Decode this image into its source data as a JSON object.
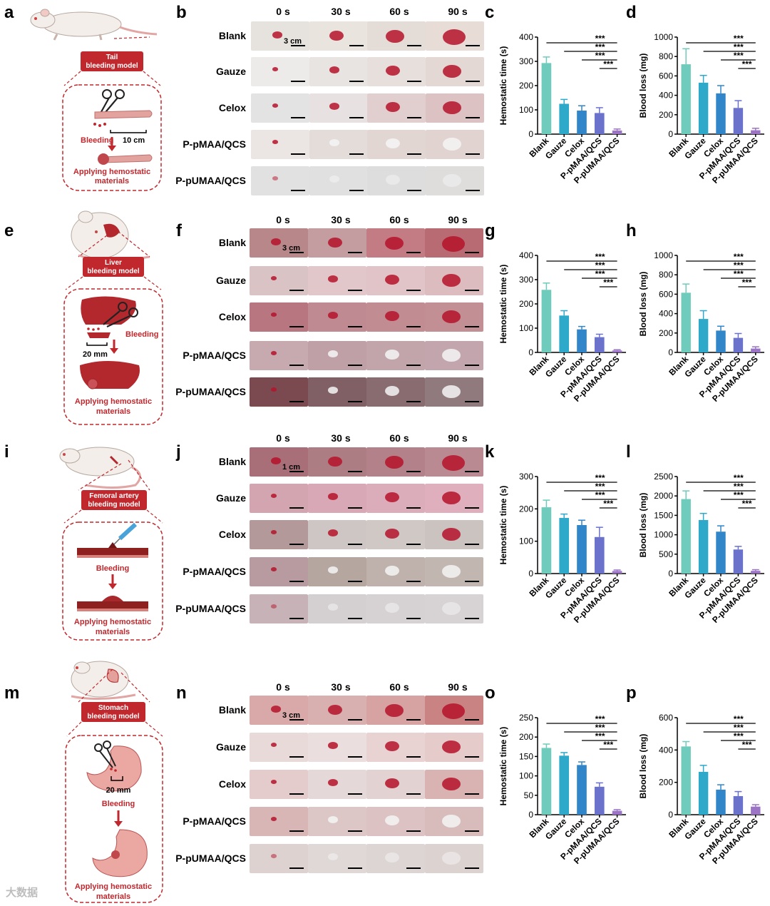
{
  "panel_letters": {
    "a": "a",
    "b": "b",
    "c": "c",
    "d": "d",
    "e": "e",
    "f": "f",
    "g": "g",
    "h": "h",
    "i": "i",
    "j": "j",
    "k": "k",
    "l": "l",
    "m": "m",
    "n": "n",
    "o": "o",
    "p": "p"
  },
  "time_labels": [
    "0 s",
    "30 s",
    "60 s",
    "90 s"
  ],
  "row_labels": [
    "Blank",
    "Gauze",
    "Celox",
    "P-pMAA/QCS",
    "P-pUMAA/QCS"
  ],
  "scale_labels": {
    "b": "3 cm",
    "f": "3 cm",
    "j": "1 cm",
    "n": "3 cm"
  },
  "models": {
    "a": {
      "title": "Tail\nbleeding model",
      "title1": "Tail",
      "title2": "bleeding model",
      "bleeding": "Bleeding",
      "measure": "10 cm",
      "apply1": "Applying hemostatic",
      "apply2": "materials"
    },
    "e": {
      "title1": "Liver",
      "title2": "bleeding model",
      "bleeding": "Bleeding",
      "measure": "20 mm",
      "apply1": "Applying hemostatic",
      "apply2": "materials"
    },
    "i": {
      "title1": "Femoral artery",
      "title2": "bleeding model",
      "bleeding": "Bleeding",
      "apply1": "Applying hemostatic",
      "apply2": "materials"
    },
    "m": {
      "title1": "Stomach",
      "title2": "bleeding model",
      "bleeding": "Bleeding",
      "measure": "20 mm",
      "apply1": "Applying hemostatic",
      "apply2": "materials"
    }
  },
  "photo_colors": {
    "b": [
      [
        "#e6e2dd",
        "#e9e4de",
        "#e4dcd6",
        "#e8dcd7"
      ],
      [
        "#ecebe9",
        "#e8e4e2",
        "#e7dfdc",
        "#e4d8d5"
      ],
      [
        "#e3e3e3",
        "#e7e2e1",
        "#e1cfcf",
        "#dcc2c2"
      ],
      [
        "#ebe6e4",
        "#e4dcd9",
        "#e2d6d3",
        "#e0d3d0"
      ],
      [
        "#e1e1e1",
        "#e0e0e0",
        "#dddddd",
        "#dfdcdc"
      ]
    ],
    "f": [
      [
        "#b8878a",
        "#c49da1",
        "#c47c84",
        "#b96b74"
      ],
      [
        "#d9c3c5",
        "#e2c7ca",
        "#e0c4c7",
        "#ddbcc0"
      ],
      [
        "#b77680",
        "#bf8a92",
        "#c28c93",
        "#c28f95"
      ],
      [
        "#c6aab0",
        "#c0a0a7",
        "#c2a5ab",
        "#c3a6ad"
      ],
      [
        "#7a4a50",
        "#806064",
        "#896c70",
        "#917a7e"
      ]
    ],
    "j": [
      [
        "#a86f78",
        "#ad7d84",
        "#b38189",
        "#ba8a92"
      ],
      [
        "#d3a5b0",
        "#d9a8b6",
        "#dbacba",
        "#e0afbd"
      ],
      [
        "#b4999a",
        "#cdc6c4",
        "#cfc8c5",
        "#cbc3c0"
      ],
      [
        "#b89ba0",
        "#b5a79f",
        "#bfb2ac",
        "#c2b6b0"
      ],
      [
        "#c7b2b7",
        "#d4d0d1",
        "#d6d2d3",
        "#d7d3d4"
      ]
    ],
    "n": [
      [
        "#d9a9a9",
        "#d8b0b0",
        "#d6a2a2",
        "#c98383"
      ],
      [
        "#e9dada",
        "#eadede",
        "#e8d2d2",
        "#e6cbcb"
      ],
      [
        "#e4cccc",
        "#e4d8d8",
        "#e3d2d2",
        "#d9b2b2"
      ],
      [
        "#d8b6b6",
        "#dcc6c6",
        "#dcc2c2",
        "#d8bcbc"
      ],
      [
        "#ddd2cf",
        "#dfd8d6",
        "#ddd5d3",
        "#dcd3d1"
      ]
    ]
  },
  "chart_data": [
    {
      "id": "c",
      "type": "bar",
      "ylabel": "Hemostatic time (s)",
      "categories": [
        "Blank",
        "Gauze",
        "Celox",
        "P-pMAA/QCS",
        "P-pUMAA/QCS"
      ],
      "values": [
        293,
        125,
        97,
        87,
        15
      ],
      "errors": [
        25,
        18,
        20,
        22,
        6
      ],
      "ylim": [
        0,
        400
      ],
      "yticks": [
        0,
        100,
        200,
        300,
        400
      ],
      "significance": "***"
    },
    {
      "id": "d",
      "type": "bar",
      "ylabel": "Blood loss (mg)",
      "categories": [
        "Blank",
        "Gauze",
        "Celox",
        "P-pMAA/QCS",
        "P-pUMAA/QCS"
      ],
      "values": [
        720,
        530,
        420,
        270,
        40
      ],
      "errors": [
        160,
        75,
        80,
        75,
        20
      ],
      "ylim": [
        0,
        1000
      ],
      "yticks": [
        0,
        200,
        400,
        600,
        800,
        1000
      ],
      "significance": "***"
    },
    {
      "id": "g",
      "type": "bar",
      "ylabel": "Hemostatic time (s)",
      "categories": [
        "Blank",
        "Gauze",
        "Celox",
        "P-pMAA/QCS",
        "P-pUMAA/QCS"
      ],
      "values": [
        258,
        152,
        95,
        63,
        8
      ],
      "errors": [
        28,
        20,
        12,
        12,
        3
      ],
      "ylim": [
        0,
        400
      ],
      "yticks": [
        0,
        100,
        200,
        300,
        400
      ],
      "significance": "***"
    },
    {
      "id": "h",
      "type": "bar",
      "ylabel": "Blood loss (mg)",
      "categories": [
        "Blank",
        "Gauze",
        "Celox",
        "P-pMAA/QCS",
        "P-pUMAA/QCS"
      ],
      "values": [
        615,
        345,
        225,
        150,
        40
      ],
      "errors": [
        90,
        85,
        45,
        45,
        18
      ],
      "ylim": [
        0,
        1000
      ],
      "yticks": [
        0,
        200,
        400,
        600,
        800,
        1000
      ],
      "significance": "***"
    },
    {
      "id": "k",
      "type": "bar",
      "ylabel": "Hemostatic time (s)",
      "categories": [
        "Blank",
        "Gauze",
        "Celox",
        "P-pMAA/QCS",
        "P-pUMAA/QCS"
      ],
      "values": [
        205,
        172,
        150,
        113,
        8
      ],
      "errors": [
        22,
        12,
        15,
        30,
        3
      ],
      "ylim": [
        0,
        300
      ],
      "yticks": [
        0,
        100,
        200,
        300
      ],
      "significance": "***"
    },
    {
      "id": "l",
      "type": "bar",
      "ylabel": "Blood loss (mg)",
      "categories": [
        "Blank",
        "Gauze",
        "Celox",
        "P-pMAA/QCS",
        "P-pUMAA/QCS"
      ],
      "values": [
        1920,
        1380,
        1080,
        620,
        70
      ],
      "errors": [
        210,
        170,
        150,
        80,
        30
      ],
      "ylim": [
        0,
        2500
      ],
      "yticks": [
        0,
        500,
        1000,
        1500,
        2000,
        2500
      ],
      "significance": "***"
    },
    {
      "id": "o",
      "type": "bar",
      "ylabel": "Hemostatic time (s)",
      "categories": [
        "Blank",
        "Gauze",
        "Celox",
        "P-pMAA/QCS",
        "P-pUMAA/QCS"
      ],
      "values": [
        172,
        152,
        128,
        72,
        10
      ],
      "errors": [
        10,
        8,
        8,
        10,
        3
      ],
      "ylim": [
        0,
        250
      ],
      "yticks": [
        0,
        50,
        100,
        150,
        200,
        250
      ],
      "significance": "***"
    },
    {
      "id": "p",
      "type": "bar",
      "ylabel": "Blood loss (mg)",
      "categories": [
        "Blank",
        "Gauze",
        "Celox",
        "P-pMAA/QCS",
        "P-pUMAA/QCS"
      ],
      "values": [
        422,
        265,
        155,
        115,
        50
      ],
      "errors": [
        30,
        40,
        30,
        28,
        12
      ],
      "ylim": [
        0,
        600
      ],
      "yticks": [
        0,
        200,
        400,
        600
      ],
      "significance": "***"
    }
  ],
  "bar_colors": [
    "#6fcbbb",
    "#2fa9c9",
    "#3185c9",
    "#6a72cc",
    "#9b74c6"
  ],
  "accent_color": "#c0282d",
  "watermark": "大数据"
}
